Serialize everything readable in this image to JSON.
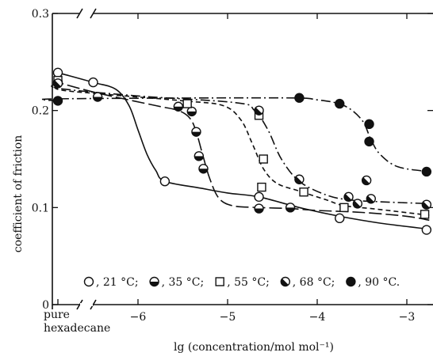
{
  "chart_data": {
    "type": "scatter",
    "xlabel": "lg (concentration/mol mol⁻¹)",
    "ylabel": "coefficient of friction",
    "xlim": [
      -7.0,
      -2.75
    ],
    "ylim": [
      0.0,
      0.3
    ],
    "x_ticks": [
      {
        "value": -6,
        "label": "−6"
      },
      {
        "value": -5,
        "label": "−5"
      },
      {
        "value": -4,
        "label": "−4"
      },
      {
        "value": -3,
        "label": "−3"
      }
    ],
    "y_ticks": [
      {
        "value": 0.0,
        "label": "0"
      },
      {
        "value": 0.1,
        "label": "0.1"
      },
      {
        "value": 0.2,
        "label": "0.2"
      },
      {
        "value": 0.3,
        "label": "0.3"
      }
    ],
    "x_origin_label": [
      "pure",
      "hexadecane"
    ],
    "grid": false,
    "legend_position": "bottom",
    "series": [
      {
        "name": "21 °C",
        "marker": "open-circle",
        "line_style": "solid",
        "pure": 0.239,
        "points": [
          [
            -6.5,
            0.229
          ],
          [
            -5.7,
            0.127
          ],
          [
            -4.65,
            0.111
          ],
          [
            -3.75,
            0.089
          ],
          [
            -2.78,
            0.077
          ]
        ],
        "curve": [
          [
            -6.5,
            0.229
          ],
          [
            -6.25,
            0.222
          ],
          [
            -6.1,
            0.205
          ],
          [
            -6.0,
            0.18
          ],
          [
            -5.9,
            0.155
          ],
          [
            -5.8,
            0.138
          ],
          [
            -5.7,
            0.127
          ],
          [
            -5.3,
            0.12
          ],
          [
            -5.0,
            0.115
          ],
          [
            -4.65,
            0.111
          ],
          [
            -4.2,
            0.1
          ],
          [
            -3.75,
            0.091
          ],
          [
            -3.3,
            0.084
          ],
          [
            -2.78,
            0.078
          ]
        ]
      },
      {
        "name": "35 °C",
        "marker": "half-filled-bottom-circle",
        "line_style": "long-dash",
        "pure": 0.229,
        "points": [
          [
            -6.45,
            0.214
          ],
          [
            -5.55,
            0.204
          ],
          [
            -5.4,
            0.199
          ],
          [
            -5.35,
            0.178
          ],
          [
            -5.32,
            0.153
          ],
          [
            -5.27,
            0.14
          ],
          [
            -4.65,
            0.099
          ],
          [
            -4.3,
            0.1
          ]
        ],
        "curve": [
          [
            -6.9,
            0.229
          ],
          [
            -6.45,
            0.218
          ],
          [
            -5.8,
            0.205
          ],
          [
            -5.55,
            0.2
          ],
          [
            -5.42,
            0.192
          ],
          [
            -5.35,
            0.178
          ],
          [
            -5.28,
            0.155
          ],
          [
            -5.2,
            0.13
          ],
          [
            -5.1,
            0.11
          ],
          [
            -4.95,
            0.102
          ],
          [
            -4.65,
            0.1
          ],
          [
            -4.3,
            0.099
          ],
          [
            -4.0,
            0.097
          ],
          [
            -3.5,
            0.095
          ],
          [
            -3.0,
            0.091
          ],
          [
            -2.75,
            0.087
          ]
        ]
      },
      {
        "name": "55 °C",
        "marker": "open-square",
        "line_style": "short-dash",
        "pure": 0.231,
        "points": [
          [
            -5.45,
            0.207
          ],
          [
            -4.65,
            0.195
          ],
          [
            -4.6,
            0.15
          ],
          [
            -4.62,
            0.121
          ],
          [
            -4.15,
            0.116
          ],
          [
            -3.7,
            0.1
          ],
          [
            -2.8,
            0.093
          ]
        ],
        "curve": [
          [
            -6.9,
            0.222
          ],
          [
            -6.4,
            0.217
          ],
          [
            -5.5,
            0.21
          ],
          [
            -5.05,
            0.205
          ],
          [
            -4.85,
            0.19
          ],
          [
            -4.72,
            0.165
          ],
          [
            -4.6,
            0.14
          ],
          [
            -4.45,
            0.125
          ],
          [
            -4.2,
            0.117
          ],
          [
            -3.9,
            0.108
          ],
          [
            -3.7,
            0.102
          ],
          [
            -3.3,
            0.098
          ],
          [
            -2.75,
            0.092
          ]
        ]
      },
      {
        "name": "68 °C",
        "marker": "half-filled-diagonal-circle",
        "line_style": "dash-dot",
        "pure": 0.228,
        "points": [
          [
            -4.65,
            0.2
          ],
          [
            -4.2,
            0.129
          ],
          [
            -3.65,
            0.111
          ],
          [
            -3.55,
            0.104
          ],
          [
            -3.4,
            0.109
          ],
          [
            -3.45,
            0.128
          ],
          [
            -2.78,
            0.103
          ]
        ],
        "curve": [
          [
            -6.9,
            0.223
          ],
          [
            -6.0,
            0.215
          ],
          [
            -4.9,
            0.208
          ],
          [
            -4.7,
            0.2
          ],
          [
            -4.55,
            0.18
          ],
          [
            -4.4,
            0.15
          ],
          [
            -4.2,
            0.127
          ],
          [
            -3.9,
            0.113
          ],
          [
            -3.65,
            0.108
          ],
          [
            -3.3,
            0.106
          ],
          [
            -2.75,
            0.104
          ]
        ]
      },
      {
        "name": "90 °C",
        "marker": "filled-circle",
        "line_style": "dash-dot",
        "pure": 0.21,
        "points": [
          [
            -4.2,
            0.213
          ],
          [
            -3.75,
            0.207
          ],
          [
            -3.42,
            0.186
          ],
          [
            -3.42,
            0.168
          ],
          [
            -2.78,
            0.137
          ]
        ],
        "curve": [
          [
            -6.9,
            0.212
          ],
          [
            -4.45,
            0.213
          ],
          [
            -4.0,
            0.211
          ],
          [
            -3.7,
            0.205
          ],
          [
            -3.5,
            0.19
          ],
          [
            -3.4,
            0.17
          ],
          [
            -3.3,
            0.155
          ],
          [
            -3.1,
            0.142
          ],
          [
            -2.75,
            0.137
          ]
        ]
      }
    ],
    "legend": [
      {
        "marker": "open-circle",
        "label": ", 21 °C;"
      },
      {
        "marker": "half-filled-bottom-circle",
        "label": ", 35 °C;"
      },
      {
        "marker": "open-square",
        "label": ", 55 °C;"
      },
      {
        "marker": "half-filled-diagonal-circle",
        "label": ", 68 °C;"
      },
      {
        "marker": "filled-circle",
        "label": ", 90 °C."
      }
    ]
  }
}
